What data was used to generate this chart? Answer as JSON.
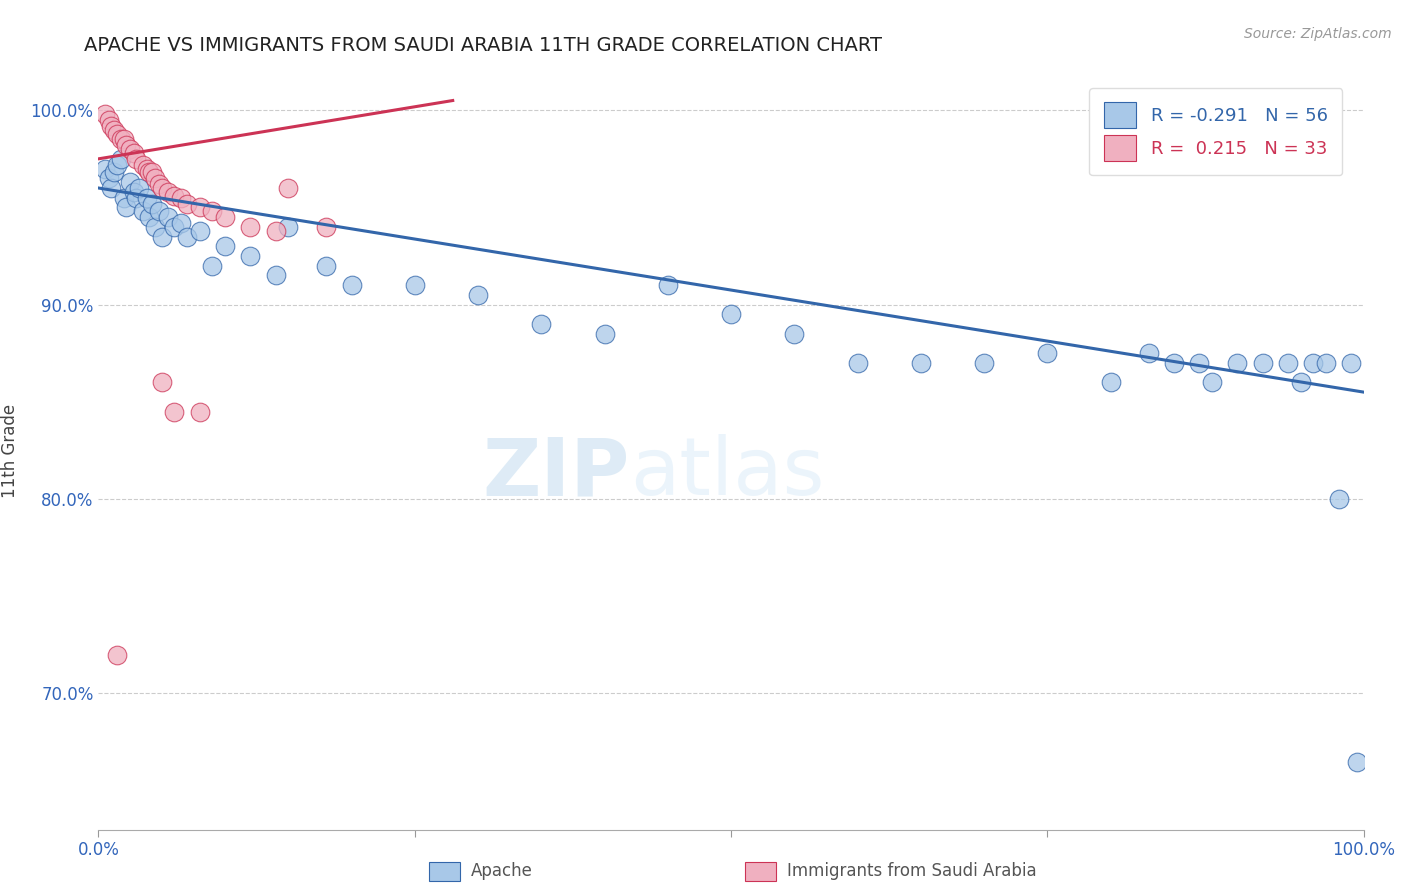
{
  "title": "APACHE VS IMMIGRANTS FROM SAUDI ARABIA 11TH GRADE CORRELATION CHART",
  "source_text": "Source: ZipAtlas.com",
  "ylabel": "11th Grade",
  "xlim": [
    0.0,
    1.0
  ],
  "ylim": [
    0.63,
    1.02
  ],
  "yticks": [
    0.7,
    0.8,
    0.9,
    1.0
  ],
  "ytick_labels": [
    "70.0%",
    "80.0%",
    "90.0%",
    "100.0%"
  ],
  "legend_labels": [
    "Apache",
    "Immigrants from Saudi Arabia"
  ],
  "legend_R": [
    "-0.291",
    "0.215"
  ],
  "legend_N": [
    "56",
    "33"
  ],
  "blue_color": "#a8c8e8",
  "pink_color": "#f0b0c0",
  "blue_line_color": "#3366aa",
  "pink_line_color": "#cc3355",
  "background_color": "#ffffff",
  "watermark_zip": "ZIP",
  "watermark_atlas": "atlas",
  "blue_x": [
    0.005,
    0.008,
    0.01,
    0.012,
    0.015,
    0.018,
    0.02,
    0.022,
    0.025,
    0.028,
    0.03,
    0.032,
    0.035,
    0.038,
    0.04,
    0.042,
    0.045,
    0.048,
    0.05,
    0.055,
    0.06,
    0.065,
    0.07,
    0.08,
    0.09,
    0.1,
    0.12,
    0.14,
    0.15,
    0.18,
    0.2,
    0.25,
    0.3,
    0.35,
    0.4,
    0.45,
    0.5,
    0.55,
    0.6,
    0.65,
    0.7,
    0.75,
    0.8,
    0.83,
    0.85,
    0.87,
    0.88,
    0.9,
    0.92,
    0.94,
    0.95,
    0.96,
    0.97,
    0.98,
    0.99,
    0.995
  ],
  "blue_y": [
    0.97,
    0.965,
    0.96,
    0.968,
    0.972,
    0.975,
    0.955,
    0.95,
    0.963,
    0.958,
    0.955,
    0.96,
    0.948,
    0.955,
    0.945,
    0.952,
    0.94,
    0.948,
    0.935,
    0.945,
    0.94,
    0.942,
    0.935,
    0.938,
    0.92,
    0.93,
    0.925,
    0.915,
    0.94,
    0.92,
    0.91,
    0.91,
    0.905,
    0.89,
    0.885,
    0.91,
    0.895,
    0.885,
    0.87,
    0.87,
    0.87,
    0.875,
    0.86,
    0.875,
    0.87,
    0.87,
    0.86,
    0.87,
    0.87,
    0.87,
    0.86,
    0.87,
    0.87,
    0.8,
    0.87,
    0.665
  ],
  "pink_x": [
    0.005,
    0.008,
    0.01,
    0.012,
    0.015,
    0.018,
    0.02,
    0.022,
    0.025,
    0.028,
    0.03,
    0.035,
    0.038,
    0.04,
    0.042,
    0.045,
    0.048,
    0.05,
    0.055,
    0.06,
    0.065,
    0.07,
    0.08,
    0.09,
    0.1,
    0.12,
    0.14,
    0.15,
    0.18,
    0.05,
    0.06,
    0.08,
    0.015
  ],
  "pink_y": [
    0.998,
    0.995,
    0.992,
    0.99,
    0.988,
    0.985,
    0.985,
    0.982,
    0.98,
    0.978,
    0.975,
    0.972,
    0.97,
    0.968,
    0.968,
    0.965,
    0.962,
    0.96,
    0.958,
    0.956,
    0.955,
    0.952,
    0.95,
    0.948,
    0.945,
    0.94,
    0.938,
    0.96,
    0.94,
    0.86,
    0.845,
    0.845,
    0.72
  ],
  "blue_trend_x": [
    0.0,
    1.0
  ],
  "blue_trend_y": [
    0.96,
    0.855
  ],
  "pink_trend_x": [
    0.0,
    0.28
  ],
  "pink_trend_y": [
    0.975,
    1.005
  ]
}
